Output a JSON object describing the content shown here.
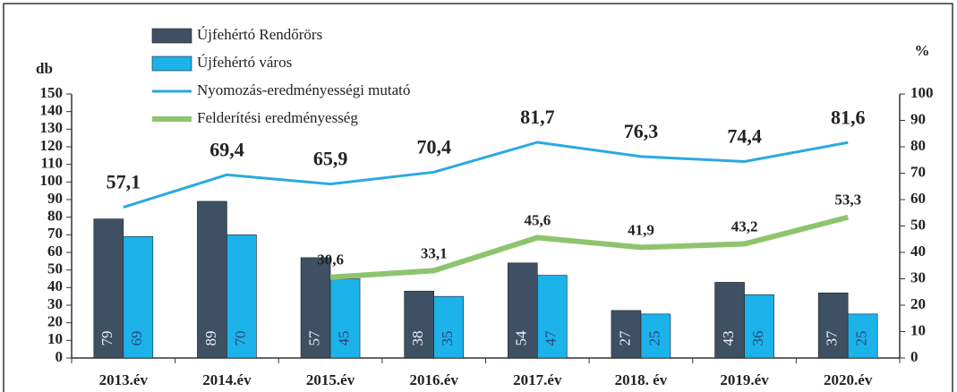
{
  "chart_data": {
    "type": "bar_line",
    "y_label": "db",
    "y2_label": "%",
    "categories": [
      "2013.év",
      "2014.év",
      "2015.év",
      "2016.év",
      "2017.év",
      "2018. év",
      "2019.év",
      "2020.év"
    ],
    "series": [
      {
        "name": "Újfehértó Rendőrörs",
        "type": "bar",
        "color": "#3e5064",
        "values": [
          79,
          89,
          57,
          38,
          54,
          27,
          43,
          37
        ]
      },
      {
        "name": "Újfehértó város",
        "type": "bar",
        "color": "#1cb2ea",
        "values": [
          69,
          70,
          45,
          35,
          47,
          25,
          36,
          25
        ]
      },
      {
        "name": "Nyomozás-eredményességi mutató",
        "type": "line",
        "axis": "y2",
        "color": "#2aa9e2",
        "values": [
          57.1,
          69.4,
          65.9,
          70.4,
          81.7,
          76.3,
          74.4,
          81.6
        ],
        "value_labels": [
          "57,1",
          "69,4",
          "65,9",
          "70,4",
          "81,7",
          "76,3",
          "74,4",
          "81,6"
        ]
      },
      {
        "name": "Felderítési eredményesség",
        "type": "line",
        "axis": "y2",
        "color": "#8fc46f",
        "values": [
          null,
          null,
          30.6,
          33.1,
          45.6,
          41.9,
          43.2,
          53.3
        ],
        "value_labels": [
          null,
          null,
          "30,6",
          "33,1",
          "45,6",
          "41,9",
          "43,2",
          "53,3"
        ]
      }
    ],
    "ylim": [
      0,
      150
    ],
    "yticks": [
      0,
      10,
      20,
      30,
      40,
      50,
      60,
      70,
      80,
      90,
      100,
      110,
      120,
      130,
      140,
      150
    ],
    "y2lim": [
      0,
      100
    ],
    "y2ticks": [
      0,
      10,
      20,
      30,
      40,
      50,
      60,
      70,
      80,
      90,
      100
    ],
    "legend": "top-left"
  }
}
